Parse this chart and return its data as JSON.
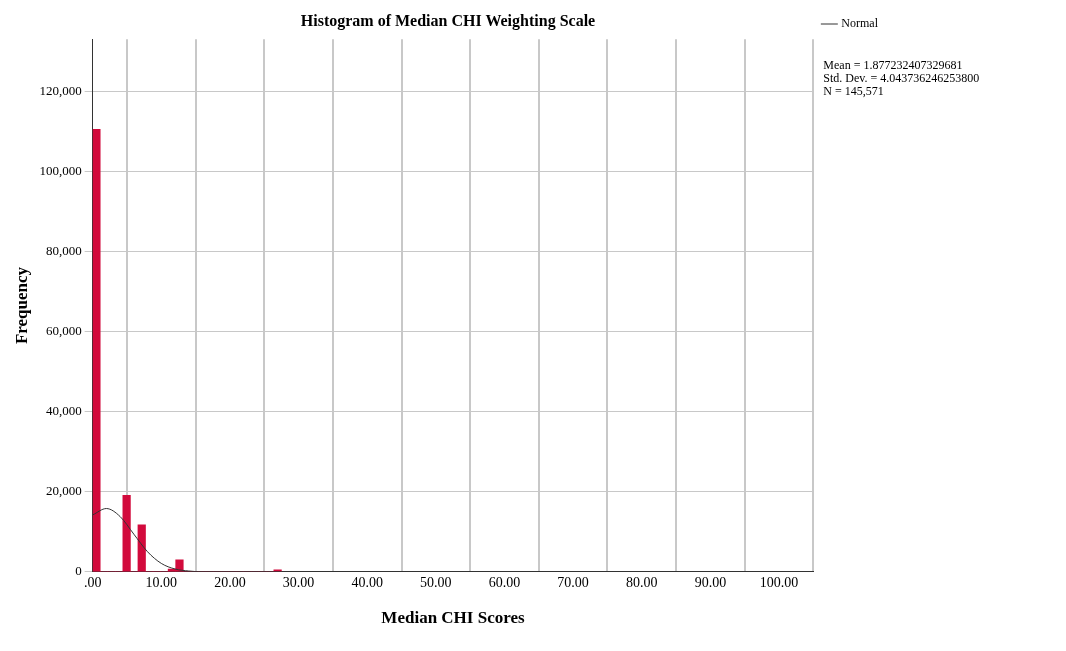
{
  "chart_data": {
    "type": "histogram",
    "title": "Histogram of Median CHI Weighting Scale",
    "xlabel": "Median CHI Scores",
    "ylabel": "Frequency",
    "bins": [
      0,
      1.1,
      2.2,
      3.3,
      4.4,
      5.5,
      6.6,
      7.7,
      8.8,
      9.9,
      11,
      12.1,
      13.2,
      14.3,
      15.4,
      16.5,
      17.6,
      18.7,
      19.8,
      20.9,
      22,
      23.1,
      24.2,
      25.3,
      26.4,
      27.5
    ],
    "values": [
      110500,
      0,
      0,
      0,
      19100,
      0,
      11700,
      0,
      0,
      0,
      700,
      3000,
      0,
      0,
      0,
      0,
      0,
      0,
      0,
      0,
      0,
      0,
      0,
      0,
      500
    ],
    "color": "#d20a3c",
    "series": [
      {
        "name": "Normal",
        "type": "line",
        "color": "#333333",
        "x": [
          0,
          2,
          4,
          6,
          8,
          10,
          12,
          14,
          16,
          20,
          30,
          105
        ],
        "values": [
          14200,
          15800,
          13800,
          9400,
          5000,
          2100,
          700,
          200,
          0,
          0,
          0,
          0
        ]
      }
    ],
    "xlim": [
      0,
      105
    ],
    "ylim": [
      0,
      133000
    ],
    "xticks": [
      {
        "value": 0,
        "label": ".00"
      },
      {
        "value": 10,
        "label": "10.00"
      },
      {
        "value": 20,
        "label": "20.00"
      },
      {
        "value": 30,
        "label": "30.00"
      },
      {
        "value": 40,
        "label": "40.00"
      },
      {
        "value": 50,
        "label": "50.00"
      },
      {
        "value": 60,
        "label": "60.00"
      },
      {
        "value": 70,
        "label": "70.00"
      },
      {
        "value": 80,
        "label": "80.00"
      },
      {
        "value": 90,
        "label": "90.00"
      },
      {
        "value": 100,
        "label": "100.00"
      }
    ],
    "yticks": [
      {
        "value": 0,
        "label": "0"
      },
      {
        "value": 20000,
        "label": "20,000"
      },
      {
        "value": 40000,
        "label": "40,000"
      },
      {
        "value": 60000,
        "label": "60,000"
      },
      {
        "value": 80000,
        "label": "80,000"
      },
      {
        "value": 100000,
        "label": "100,000"
      },
      {
        "value": 120000,
        "label": "120,000"
      }
    ],
    "grid": true,
    "legend": "top right",
    "marker": "none",
    "line_style": "solid",
    "annotations": [
      "Mean = 1.877232407329681\nStd. Dev. = 4.043736246253800\nN = 145,571"
    ]
  }
}
